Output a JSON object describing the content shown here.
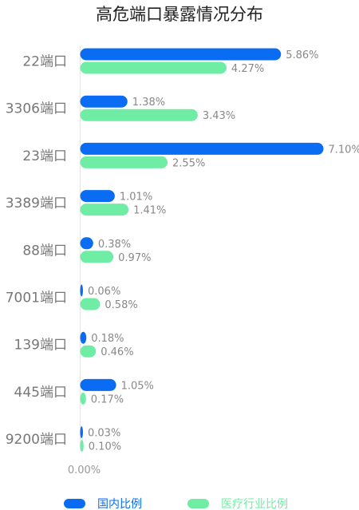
{
  "chart_data": {
    "type": "bar",
    "orientation": "horizontal",
    "title": "高危端口暴露情况分布",
    "categories": [
      "22端口",
      "3306端口",
      "23端口",
      "3389端口",
      "88端口",
      "7001端口",
      "139端口",
      "445端口",
      "9200端口"
    ],
    "series": [
      {
        "name": "国内比例",
        "color": "#0a6cf2",
        "values": [
          5.86,
          1.38,
          7.1,
          1.01,
          0.38,
          0.06,
          0.18,
          1.05,
          0.03
        ],
        "labels": [
          "5.86%",
          "1.38%",
          "7.10%",
          "1.01%",
          "0.38%",
          "0.06%",
          "0.18%",
          "1.05%",
          "0.03%"
        ]
      },
      {
        "name": "医疗行业比例",
        "color": "#70eda5",
        "values": [
          4.27,
          3.43,
          2.55,
          1.41,
          0.97,
          0.58,
          0.46,
          0.17,
          0.1
        ],
        "labels": [
          "4.27%",
          "3.43%",
          "2.55%",
          "1.41%",
          "0.97%",
          "0.58%",
          "0.46%",
          "0.17%",
          "0.10%"
        ]
      }
    ],
    "x_axis_label": "0.00%",
    "xlim": [
      0,
      7.1
    ],
    "legend_position": "bottom",
    "grid": false
  }
}
